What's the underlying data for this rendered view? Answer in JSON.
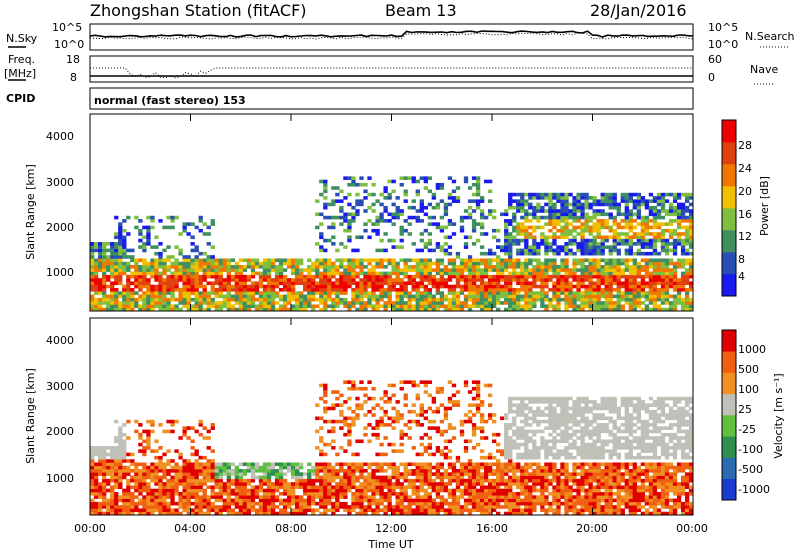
{
  "header": {
    "station": "Zhongshan Station (fitACF)",
    "beam": "Beam 13",
    "date": "28/Jan/2016"
  },
  "top_panels": {
    "nsky_label": "N.Sky",
    "nsky_ticks": [
      "10^5",
      "10^0"
    ],
    "nsearch_label": "N.Search",
    "nsearch_ticks": [
      "10^5",
      "10^0"
    ],
    "freq_label_1": "Freq.",
    "freq_label_2": "[MHz]",
    "freq_ticks": [
      "18",
      "8"
    ],
    "nave_label": "Nave",
    "nave_ticks": [
      "60",
      "0"
    ],
    "cpid_label": "CPID",
    "cpid_text": "normal (fast stereo) 153"
  },
  "chart_data": [
    {
      "type": "heatmap",
      "name": "power",
      "ylabel": "Slant Range [km]",
      "yticks": [
        "4000",
        "3000",
        "2000",
        "1000"
      ],
      "ylim": [
        180,
        4500
      ],
      "colorbar_label": "Power [dB]",
      "colorbar_ticks": [
        "28",
        "24",
        "20",
        "16",
        "12",
        "8",
        "4"
      ],
      "colors": [
        "#1a1af0",
        "#2a4fb4",
        "#3f8f5f",
        "#7fbf3f",
        "#f0c000",
        "#f07800",
        "#e04010",
        "#ee0000"
      ]
    },
    {
      "type": "heatmap",
      "name": "velocity",
      "ylabel": "Slant Range [km]",
      "yticks": [
        "4000",
        "3000",
        "2000",
        "1000"
      ],
      "ylim": [
        180,
        4500
      ],
      "colorbar_label": "Velocity [m s⁻¹]",
      "colorbar_ticks": [
        "1000",
        "500",
        "100",
        "25",
        "-25",
        "-100",
        "-500",
        "-1000"
      ],
      "colors": [
        "#1a3ad0",
        "#2a6ab0",
        "#2f8f4f",
        "#5fbf3f",
        "#c0c0b8",
        "#f09020",
        "#f06010",
        "#e00000"
      ]
    }
  ],
  "xaxis": {
    "label": "Time UT",
    "ticks": [
      "00:00",
      "04:00",
      "08:00",
      "12:00",
      "16:00",
      "20:00",
      "00:00"
    ]
  }
}
